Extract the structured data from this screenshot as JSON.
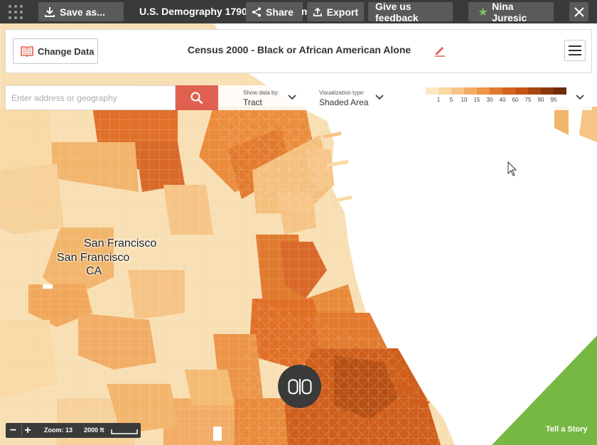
{
  "topbar": {
    "save_label": "Save as...",
    "title": "U.S. Demography 1790 to",
    "title_tail": "m",
    "share_label": "Share",
    "export_label": "Export",
    "feedback_label": "Give us feedback",
    "user_name": "Nina Juresic"
  },
  "header": {
    "change_data_label": "Change Data",
    "map_title": "Census 2000 - Black or African American Alone"
  },
  "search": {
    "placeholder": "Enter address or geography"
  },
  "show_data": {
    "label": "Show data by:",
    "value": "Tract"
  },
  "viz_type": {
    "label": "Visualization type:",
    "value": "Shaded Area"
  },
  "legend": {
    "ticks": [
      "1",
      "5",
      "10",
      "15",
      "30",
      "40",
      "60",
      "75",
      "90",
      "95"
    ],
    "colors": [
      "#fbe7c6",
      "#f9d9a4",
      "#f6c486",
      "#f2ac66",
      "#ec9448",
      "#e27a2e",
      "#d4631c",
      "#c45312",
      "#a9450e",
      "#8b370a",
      "#6e2b07"
    ]
  },
  "labels": {
    "city1": "San Francisco",
    "city2": "San Francisco",
    "state": "CA"
  },
  "zoom": {
    "minus": "−",
    "plus": "+",
    "level_label": "Zoom: 13",
    "scale_label": "2000 ft"
  },
  "story": {
    "label": "Tell a Story",
    "color": "#77b843"
  },
  "colors": {
    "topbar_bg": "#3a3a3a",
    "search_button": "#e06050",
    "water": "#ffffff"
  }
}
